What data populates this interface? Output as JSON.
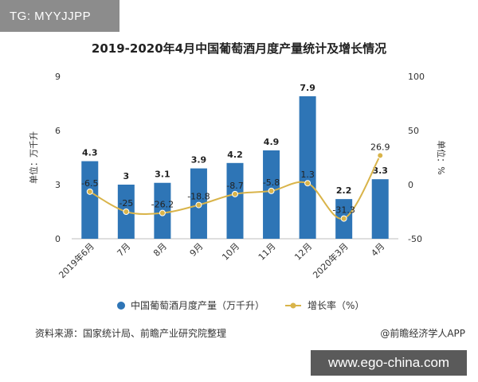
{
  "badge_text": "TG: MYYJJPP",
  "watermark_text": "www.ego-china.com",
  "source_text": "资料来源：国家统计局、前瞻产业研究院整理",
  "credit_text": "@前瞻经济学人APP",
  "colors": {
    "bar": "#2e75b6",
    "line": "#d9b44a",
    "badge_bg": "#8c8c8c",
    "watermark_bg": "#5a5a5a"
  },
  "chart_data": {
    "type": "bar",
    "title": "2019-2020年4月中国葡萄酒月度产量统计及增长情况",
    "categories": [
      "2019年6月",
      "7月",
      "8月",
      "9月",
      "10月",
      "11月",
      "12月",
      "2020年3月",
      "4月"
    ],
    "series": [
      {
        "name": "中国葡萄酒月度产量（万千升）",
        "type": "bar",
        "axis": "left",
        "values": [
          4.3,
          3,
          3.1,
          3.9,
          4.2,
          4.9,
          7.9,
          2.2,
          3.3
        ],
        "labels": [
          "4.3",
          "3",
          "3.1",
          "3.9",
          "4.2",
          "4.9",
          "7.9",
          "2.2",
          "3.3"
        ]
      },
      {
        "name": "增长率（%）",
        "type": "line",
        "axis": "right",
        "values": [
          -6.5,
          -25,
          -26.2,
          -18.8,
          -8.7,
          -5.8,
          1.3,
          -31.3,
          26.9
        ],
        "labels": [
          "-6.5",
          "-25",
          "-26.2",
          "-18.8",
          "-8.7",
          "-5.8",
          "1.3",
          "-31.3",
          "26.9"
        ]
      }
    ],
    "ylabel": "单位：万千升",
    "y2label": "单位：%",
    "ylim": [
      0,
      9
    ],
    "yticks": [
      "0",
      "3",
      "6",
      "9"
    ],
    "y2lim": [
      -50,
      100
    ],
    "y2ticks": [
      "-50",
      "0",
      "50",
      "100"
    ],
    "grid": false,
    "legend": "bottom"
  }
}
